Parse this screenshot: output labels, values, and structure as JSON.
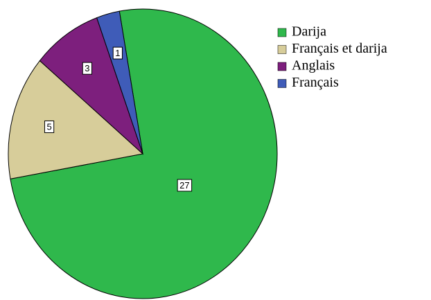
{
  "chart_data": {
    "type": "pie",
    "categories": [
      "Darija",
      "Français et darija",
      "Anglais",
      "Français"
    ],
    "values": [
      27,
      5,
      3,
      1
    ],
    "colors": [
      "#2fb84c",
      "#d7cd9a",
      "#7d1f7d",
      "#3f5cb8"
    ]
  }
}
